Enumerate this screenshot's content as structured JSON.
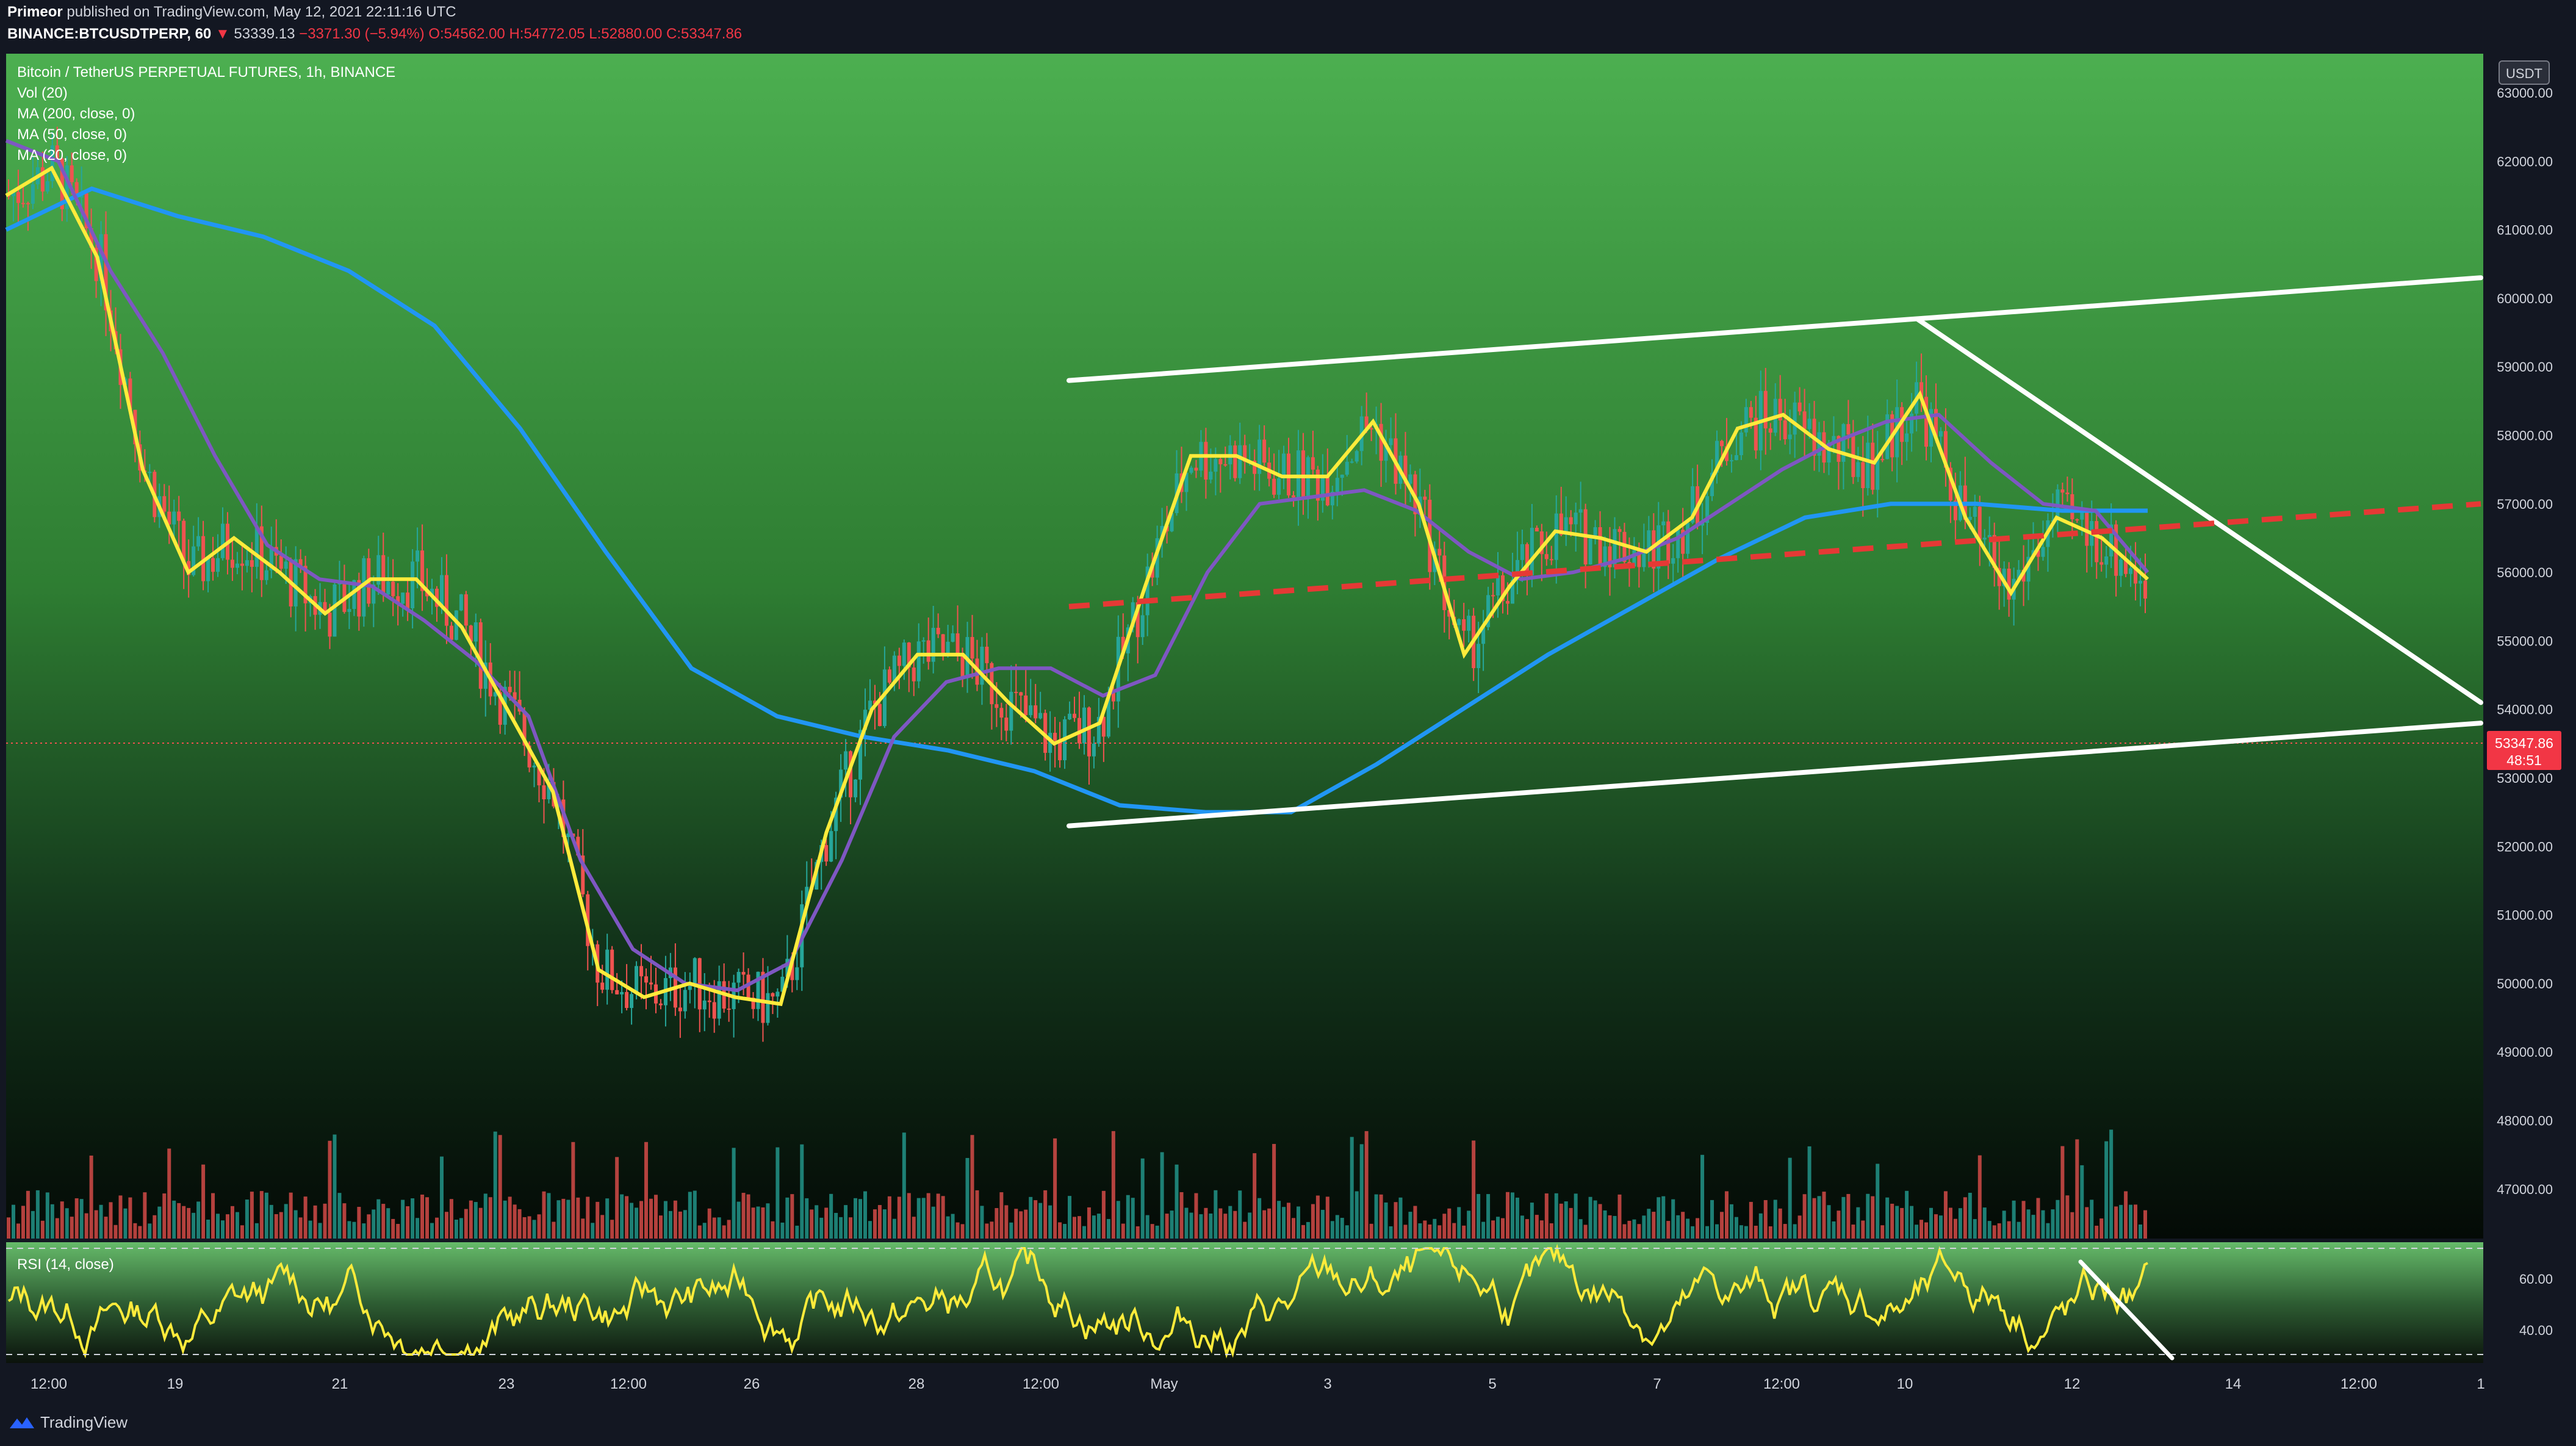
{
  "header": {
    "author": "Primeor",
    "published": "published on TradingView.com, May 12, 2021 22:11:16 UTC",
    "symbol": "BINANCE:BTCUSDTPERP, 60",
    "last": "53339.13",
    "change": "−3371.30 (−5.94%)",
    "open": "O:54562.00",
    "high": "H:54772.05",
    "low": "L:52880.00",
    "close": "C:53347.86"
  },
  "legend": {
    "title": "Bitcoin / TetherUS PERPETUAL FUTURES, 1h, BINANCE",
    "vol": "Vol (20)",
    "ma200": "MA (200, close, 0)",
    "ma50": "MA (50, close, 0)",
    "ma20": "MA (20, close, 0)",
    "rsi": "RSI (14, close)"
  },
  "currency_badge": "USDT",
  "price_tag": {
    "value": "53347.86",
    "countdown": "48:51"
  },
  "brand": "TradingView",
  "colors": {
    "ma20": "#ffeb3b",
    "ma50": "#7e57c2",
    "ma200": "#2196f3",
    "up": "#26a69a",
    "down": "#ef5350",
    "rsi": "#ffeb3b",
    "trend": "#ffffff",
    "mid": "#e53935"
  },
  "chart_data": {
    "type": "candlestick",
    "y_ticks": [
      "63000.00",
      "62000.00",
      "61000.00",
      "60000.00",
      "59000.00",
      "58000.00",
      "57000.00",
      "56000.00",
      "55000.00",
      "54000.00",
      "53000.00",
      "52000.00",
      "51000.00",
      "50000.00",
      "49000.00",
      "48000.00",
      "47000.00"
    ],
    "ylim": [
      46000,
      63500
    ],
    "x_ticks": [
      "12:00",
      "19",
      "21",
      "23",
      "12:00",
      "26",
      "28",
      "12:00",
      "May",
      "3",
      "5",
      "7",
      "12:00",
      "10",
      "12",
      "14",
      "12:00",
      "1"
    ],
    "rsi_ticks": [
      "60.00",
      "40.00"
    ],
    "ma20": [
      [
        -10,
        61500
      ],
      [
        0,
        61900
      ],
      [
        1,
        60600
      ],
      [
        2,
        57500
      ],
      [
        3,
        56000
      ],
      [
        4,
        56500
      ],
      [
        5,
        56000
      ],
      [
        6,
        55400
      ],
      [
        7,
        55900
      ],
      [
        8,
        55900
      ],
      [
        9,
        55200
      ],
      [
        10,
        54000
      ],
      [
        11,
        52800
      ],
      [
        12,
        50200
      ],
      [
        13,
        49800
      ],
      [
        14,
        50000
      ],
      [
        15,
        49800
      ],
      [
        16,
        49700
      ],
      [
        17,
        52200
      ],
      [
        18,
        54000
      ],
      [
        19,
        54800
      ],
      [
        20,
        54800
      ],
      [
        21,
        54100
      ],
      [
        22,
        53500
      ],
      [
        23,
        53800
      ],
      [
        24,
        55800
      ],
      [
        25,
        57700
      ],
      [
        26,
        57700
      ],
      [
        27,
        57400
      ],
      [
        28,
        57400
      ],
      [
        29,
        58200
      ],
      [
        30,
        57000
      ],
      [
        31,
        54800
      ],
      [
        32,
        55800
      ],
      [
        33,
        56600
      ],
      [
        34,
        56500
      ],
      [
        35,
        56300
      ],
      [
        36,
        56800
      ],
      [
        37,
        58100
      ],
      [
        38,
        58300
      ],
      [
        39,
        57800
      ],
      [
        40,
        57600
      ],
      [
        41,
        58600
      ],
      [
        42,
        56800
      ],
      [
        43,
        55700
      ],
      [
        44,
        56800
      ],
      [
        45,
        56500
      ],
      [
        46,
        55900
      ]
    ],
    "ma50": [
      [
        -10,
        62300
      ],
      [
        0,
        62000
      ],
      [
        1,
        60400
      ],
      [
        2,
        59200
      ],
      [
        3,
        57700
      ],
      [
        4,
        56400
      ],
      [
        5,
        55900
      ],
      [
        6,
        55800
      ],
      [
        7,
        55300
      ],
      [
        8,
        54700
      ],
      [
        9,
        53900
      ],
      [
        10,
        51800
      ],
      [
        11,
        50500
      ],
      [
        12,
        50000
      ],
      [
        13,
        49900
      ],
      [
        14,
        50300
      ],
      [
        15,
        51800
      ],
      [
        16,
        53600
      ],
      [
        17,
        54400
      ],
      [
        18,
        54600
      ],
      [
        19,
        54600
      ],
      [
        20,
        54200
      ],
      [
        21,
        54500
      ],
      [
        22,
        56000
      ],
      [
        23,
        57000
      ],
      [
        24,
        57100
      ],
      [
        25,
        57200
      ],
      [
        26,
        56900
      ],
      [
        27,
        56300
      ],
      [
        28,
        55900
      ],
      [
        29,
        56000
      ],
      [
        30,
        56200
      ],
      [
        31,
        56500
      ],
      [
        32,
        57000
      ],
      [
        33,
        57500
      ],
      [
        34,
        57900
      ],
      [
        35,
        58200
      ],
      [
        36,
        58300
      ],
      [
        37,
        57600
      ],
      [
        38,
        57000
      ],
      [
        39,
        56900
      ],
      [
        40,
        56000
      ]
    ],
    "ma200": [
      [
        -10,
        61000
      ],
      [
        0,
        61600
      ],
      [
        1,
        61200
      ],
      [
        2,
        60900
      ],
      [
        3,
        60400
      ],
      [
        4,
        59600
      ],
      [
        5,
        58100
      ],
      [
        6,
        56300
      ],
      [
        7,
        54600
      ],
      [
        8,
        53900
      ],
      [
        9,
        53600
      ],
      [
        10,
        53400
      ],
      [
        11,
        53100
      ],
      [
        12,
        52600
      ],
      [
        13,
        52500
      ],
      [
        14,
        52500
      ],
      [
        15,
        53200
      ],
      [
        16,
        54000
      ],
      [
        17,
        54800
      ],
      [
        18,
        55500
      ],
      [
        19,
        56200
      ],
      [
        20,
        56800
      ],
      [
        21,
        57000
      ],
      [
        22,
        57000
      ],
      [
        23,
        56900
      ],
      [
        24,
        56900
      ]
    ],
    "trendlines": [
      {
        "name": "channel-top",
        "from": [
          0,
          58800
        ],
        "to": [
          1,
          60300
        ]
      },
      {
        "name": "channel-bottom",
        "from": [
          0,
          52300
        ],
        "to": [
          1,
          53800
        ]
      },
      {
        "name": "descending",
        "from": [
          0,
          59700
        ],
        "to": [
          1,
          54100
        ]
      },
      {
        "name": "midline",
        "from": [
          0,
          55500
        ],
        "to": [
          1,
          57000
        ]
      }
    ],
    "current_price": 53347.86
  }
}
